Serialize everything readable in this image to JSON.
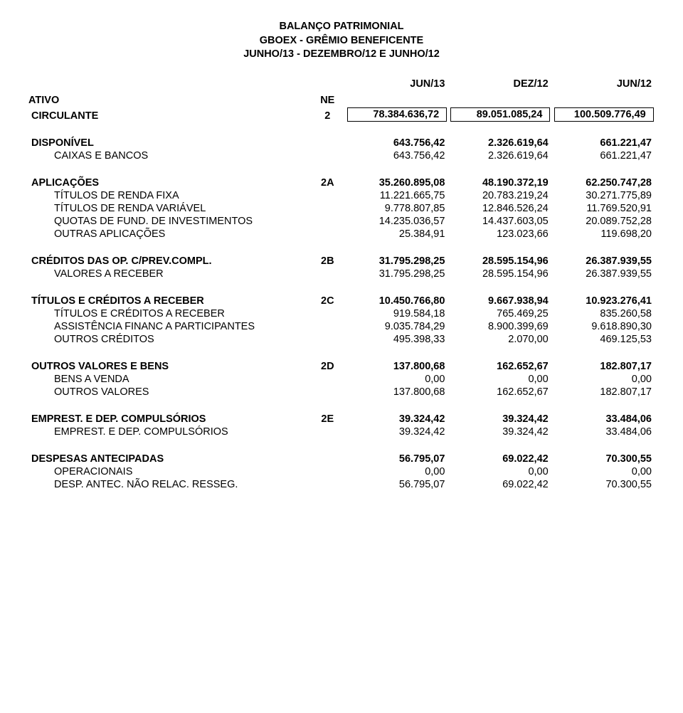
{
  "title": {
    "line1": "BALANÇO PATRIMONIAL",
    "line2": "GBOEX - GRÊMIO BENEFICENTE",
    "line3": "JUNHO/13 - DEZEMBRO/12 E JUNHO/12"
  },
  "headers": {
    "col3": "JUN/13",
    "col4": "DEZ/12",
    "col5": "JUN/12"
  },
  "ativo": {
    "label": "ATIVO",
    "ne_label": "NE"
  },
  "circulante": {
    "label": "CIRCULANTE",
    "ne": "2",
    "v1": "78.384.636,72",
    "v2": "89.051.085,24",
    "v3": "100.509.776,49"
  },
  "sections": [
    {
      "head": {
        "label": "DISPONÍVEL",
        "ne": "",
        "v1": "643.756,42",
        "v2": "2.326.619,64",
        "v3": "661.221,47"
      },
      "rows": [
        {
          "label": "CAIXAS E BANCOS",
          "v1": "643.756,42",
          "v2": "2.326.619,64",
          "v3": "661.221,47"
        }
      ]
    },
    {
      "head": {
        "label": "APLICAÇÕES",
        "ne": "2A",
        "v1": "35.260.895,08",
        "v2": "48.190.372,19",
        "v3": "62.250.747,28"
      },
      "rows": [
        {
          "label": "TÍTULOS DE RENDA FIXA",
          "v1": "11.221.665,75",
          "v2": "20.783.219,24",
          "v3": "30.271.775,89"
        },
        {
          "label": "TÍTULOS DE RENDA VARIÁVEL",
          "v1": "9.778.807,85",
          "v2": "12.846.526,24",
          "v3": "11.769.520,91"
        },
        {
          "label": "QUOTAS DE FUND. DE INVESTIMENTOS",
          "v1": "14.235.036,57",
          "v2": "14.437.603,05",
          "v3": "20.089.752,28"
        },
        {
          "label": "OUTRAS APLICAÇÕES",
          "v1": "25.384,91",
          "v2": "123.023,66",
          "v3": "119.698,20"
        }
      ]
    },
    {
      "head": {
        "label": "CRÉDITOS DAS OP. C/PREV.COMPL.",
        "ne": "2B",
        "v1": "31.795.298,25",
        "v2": "28.595.154,96",
        "v3": "26.387.939,55"
      },
      "rows": [
        {
          "label": "VALORES A RECEBER",
          "v1": "31.795.298,25",
          "v2": "28.595.154,96",
          "v3": "26.387.939,55"
        }
      ]
    },
    {
      "head": {
        "label": "TÍTULOS E CRÉDITOS A RECEBER",
        "ne": "2C",
        "v1": "10.450.766,80",
        "v2": "9.667.938,94",
        "v3": "10.923.276,41"
      },
      "rows": [
        {
          "label": "TÍTULOS E CRÉDITOS A RECEBER",
          "v1": "919.584,18",
          "v2": "765.469,25",
          "v3": "835.260,58"
        },
        {
          "label": "ASSISTÊNCIA FINANC A PARTICIPANTES",
          "v1": "9.035.784,29",
          "v2": "8.900.399,69",
          "v3": "9.618.890,30"
        },
        {
          "label": "OUTROS CRÉDITOS",
          "v1": "495.398,33",
          "v2": "2.070,00",
          "v3": "469.125,53"
        }
      ]
    },
    {
      "head": {
        "label": "OUTROS VALORES E BENS",
        "ne": "2D",
        "v1": "137.800,68",
        "v2": "162.652,67",
        "v3": "182.807,17"
      },
      "rows": [
        {
          "label": "BENS A VENDA",
          "v1": "0,00",
          "v2": "0,00",
          "v3": "0,00"
        },
        {
          "label": "OUTROS VALORES",
          "v1": "137.800,68",
          "v2": "162.652,67",
          "v3": "182.807,17"
        }
      ]
    },
    {
      "head": {
        "label": "EMPREST. E DEP. COMPULSÓRIOS",
        "ne": "2E",
        "v1": "39.324,42",
        "v2": "39.324,42",
        "v3": "33.484,06"
      },
      "rows": [
        {
          "label": "EMPREST. E DEP. COMPULSÓRIOS",
          "v1": "39.324,42",
          "v2": "39.324,42",
          "v3": "33.484,06"
        }
      ]
    },
    {
      "head": {
        "label": "DESPESAS ANTECIPADAS",
        "ne": "",
        "v1": "56.795,07",
        "v2": "69.022,42",
        "v3": "70.300,55"
      },
      "rows": [
        {
          "label": "OPERACIONAIS",
          "v1": "0,00",
          "v2": "0,00",
          "v3": "0,00"
        },
        {
          "label": "DESP. ANTEC. NÃO RELAC. RESSEG.",
          "v1": "56.795,07",
          "v2": "69.022,42",
          "v3": "70.300,55"
        }
      ]
    }
  ]
}
